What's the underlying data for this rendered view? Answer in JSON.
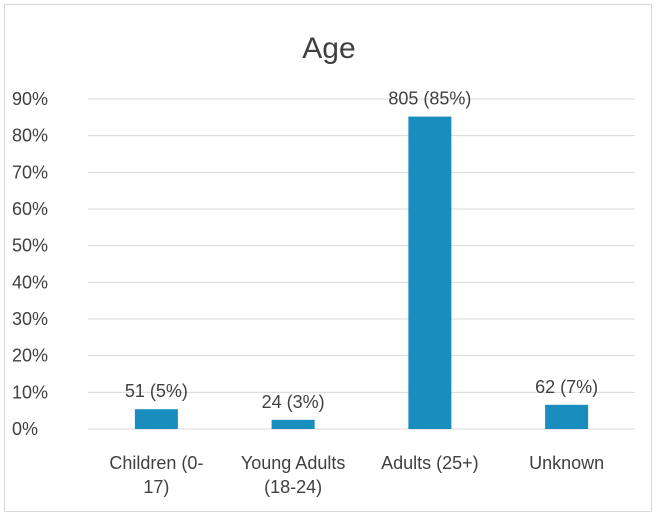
{
  "chart_data": {
    "type": "bar",
    "title": "Age",
    "xlabel": "",
    "ylabel": "",
    "categories": [
      [
        "Children (0-",
        "17)"
      ],
      [
        "Young Adults",
        "(18-24)"
      ],
      [
        "Adults (25+)"
      ],
      [
        "Unknown"
      ]
    ],
    "values": [
      5.4,
      2.5,
      85.2,
      6.6
    ],
    "data_labels": [
      "51 (5%)",
      "24 (3%)",
      "805 (85%)",
      "62 (7%)"
    ],
    "ylim": [
      0,
      90
    ],
    "yticks": [
      0,
      10,
      20,
      30,
      40,
      50,
      60,
      70,
      80,
      90
    ],
    "ytick_labels": [
      "0%",
      "10%",
      "20%",
      "30%",
      "40%",
      "50%",
      "60%",
      "70%",
      "80%",
      "90%"
    ],
    "grid": true,
    "legend": "none",
    "bar_color": "#1a8dbf",
    "grid_color": "#d9d9d9"
  }
}
